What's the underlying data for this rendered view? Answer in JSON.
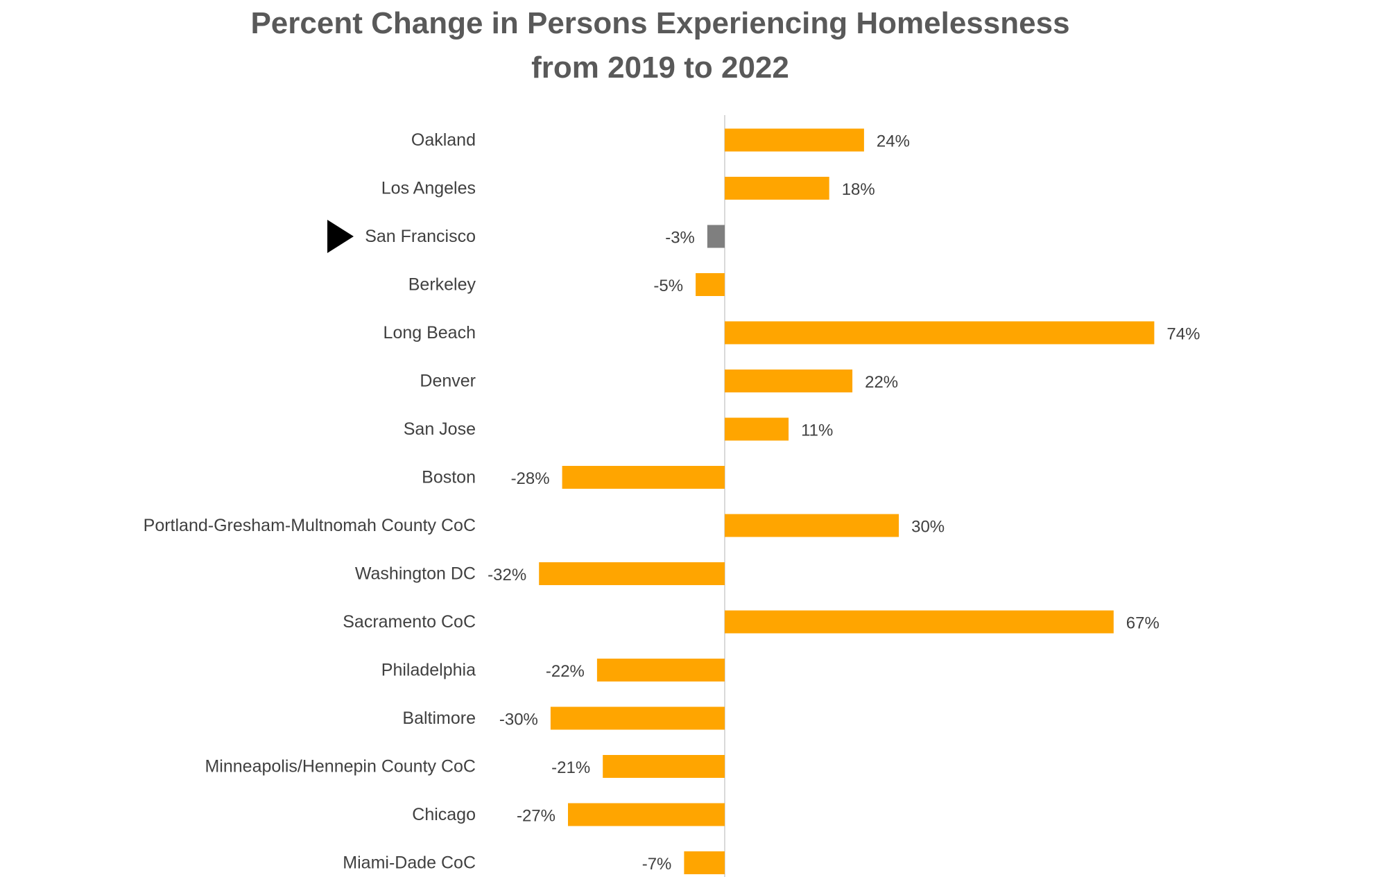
{
  "chart_data": {
    "type": "bar",
    "orientation": "horizontal",
    "title": [
      "Percent Change in Persons Experiencing Homelessness",
      "from 2019 to 2022"
    ],
    "xlabel": "",
    "ylabel": "",
    "grid": false,
    "legend": "none",
    "categories": [
      "Oakland",
      "Los Angeles",
      "San Francisco",
      "Berkeley",
      "Long Beach",
      "Denver",
      "San Jose",
      "Boston",
      "Portland-Gresham-Multnomah County CoC",
      "Washington DC",
      "Sacramento CoC",
      "Philadelphia",
      "Baltimore",
      "Minneapolis/Hennepin County CoC",
      "Chicago",
      "Miami-Dade CoC"
    ],
    "series": [
      {
        "values": [
          24,
          18,
          -3,
          -5,
          74,
          22,
          11,
          -28,
          30,
          -32,
          67,
          -22,
          -30,
          -21,
          -27,
          -7
        ]
      }
    ],
    "data_labels": [
      "24%",
      "18%",
      "-3%",
      "-5%",
      "74%",
      "22%",
      "11%",
      "-28%",
      "30%",
      "-32%",
      "67%",
      "-22%",
      "-30%",
      "-21%",
      "-27%",
      "-7%"
    ],
    "unit": "%",
    "highlight_category": "San Francisco",
    "colors": {
      "bar": "#FFA500",
      "highlight_bar": "#7F7F7F",
      "axis": "#D9D9D9",
      "marker": "#000000"
    }
  }
}
